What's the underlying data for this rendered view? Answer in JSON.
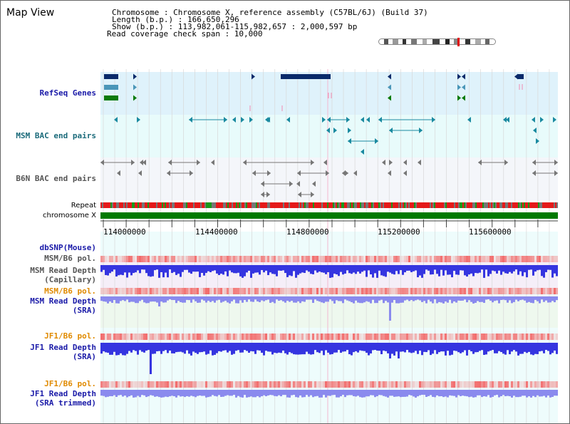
{
  "title": "Map View",
  "info": {
    "chromosome_line": "Chromosome    : Chromosome X, reference assembly (C57BL/6J) (Build 37)",
    "length_line": "Length (b.p.) : 166,650,296",
    "show_line": "  Show (b.p.) : 113,982,061-115,982,657 : 2,000,597 bp",
    "coverage_line": "Read coverage check span : 10,000"
  },
  "track_labels": {
    "refseq": "RefSeq Genes",
    "msm_bac": "MSM BAC end pairs",
    "b6n_bac": "B6N BAC end pairs",
    "repeat": "Repeat",
    "chromosome": "chromosome X",
    "dbsnp": "dbSNP(Mouse)",
    "msm_b6_pol_1": "MSM/B6 pol.",
    "msm_read_depth_cap_1": "MSM Read Depth",
    "msm_read_depth_cap_2": "(Capillary)",
    "msm_b6_pol_2": "MSM/B6 pol.",
    "msm_read_depth_sra_1": "MSM Read Depth",
    "msm_read_depth_sra_2": "(SRA)",
    "jf1_b6_pol_1": "JF1/B6 pol.",
    "jf1_read_depth_sra_1": "JF1 Read Depth",
    "jf1_read_depth_sra_2": "(SRA)",
    "jf1_b6_pol_2": "JF1/B6 pol.",
    "jf1_read_depth_trim_1": "JF1 Read Depth",
    "jf1_read_depth_trim_2": "(SRA trimmed)"
  },
  "axis_ticks": [
    "114000000",
    "114400000",
    "114800000",
    "115200000",
    "115600000"
  ],
  "colors": {
    "refseq_bg": "#dff2fb",
    "bac_bg": "#e8fbfb",
    "b6n_bg": "#f4f6fa",
    "depth_bg": "#eefcfc",
    "depth_bar": "#3535e0",
    "depth_bar_light": "#8a8aee",
    "pol_red": "#f26b6b",
    "chrom_green": "#007a00",
    "gene_navy": "#0a2a6a"
  },
  "icons": [
    "chromosome-ideogram"
  ]
}
